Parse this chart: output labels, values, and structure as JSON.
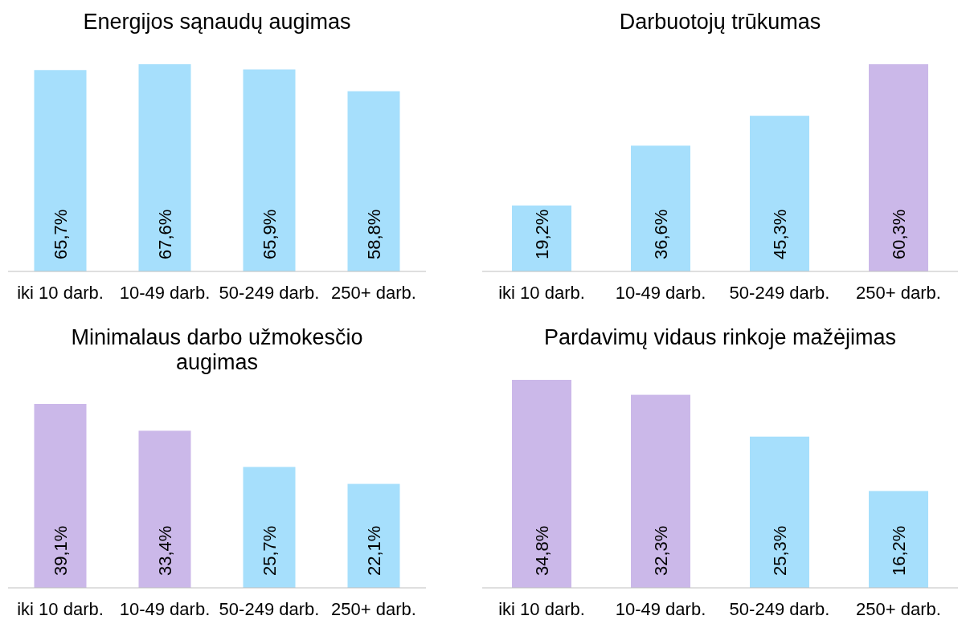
{
  "chart_data": [
    {
      "type": "bar",
      "title": "Energijos sąnaudų augimas",
      "categories": [
        "iki 10 darb.",
        "10-49 darb.",
        "50-249 darb.",
        "250+ darb."
      ],
      "values": [
        65.7,
        67.6,
        65.9,
        58.8
      ],
      "value_labels": [
        "65,7%",
        "67,6%",
        "65,9%",
        "58,8%"
      ],
      "colors": [
        "#a6dffc",
        "#a6dffc",
        "#a6dffc",
        "#a6dffc"
      ]
    },
    {
      "type": "bar",
      "title": "Darbuotojų trūkumas",
      "categories": [
        "iki 10 darb.",
        "10-49 darb.",
        "50-249 darb.",
        "250+ darb."
      ],
      "values": [
        19.2,
        36.6,
        45.3,
        60.3
      ],
      "value_labels": [
        "19,2%",
        "36,6%",
        "45,3%",
        "60,3%"
      ],
      "colors": [
        "#a6dffc",
        "#a6dffc",
        "#a6dffc",
        "#cbb8e9"
      ]
    },
    {
      "type": "bar",
      "title": "Minimalaus darbo užmokesčio augimas",
      "categories": [
        "iki 10 darb.",
        "10-49 darb.",
        "50-249 darb.",
        "250+ darb."
      ],
      "values": [
        39.1,
        33.4,
        25.7,
        22.1
      ],
      "value_labels": [
        "39,1%",
        "33,4%",
        "25,7%",
        "22,1%"
      ],
      "colors": [
        "#cbb8e9",
        "#cbb8e9",
        "#a6dffc",
        "#a6dffc"
      ]
    },
    {
      "type": "bar",
      "title": "Pardavimų vidaus rinkoje mažėjimas",
      "categories": [
        "iki 10 darb.",
        "10-49 darb.",
        "50-249 darb.",
        "250+ darb."
      ],
      "values": [
        34.8,
        32.3,
        25.3,
        16.2
      ],
      "value_labels": [
        "34,8%",
        "32,3%",
        "25,3%",
        "16,2%"
      ],
      "colors": [
        "#cbb8e9",
        "#cbb8e9",
        "#a6dffc",
        "#a6dffc"
      ]
    }
  ]
}
